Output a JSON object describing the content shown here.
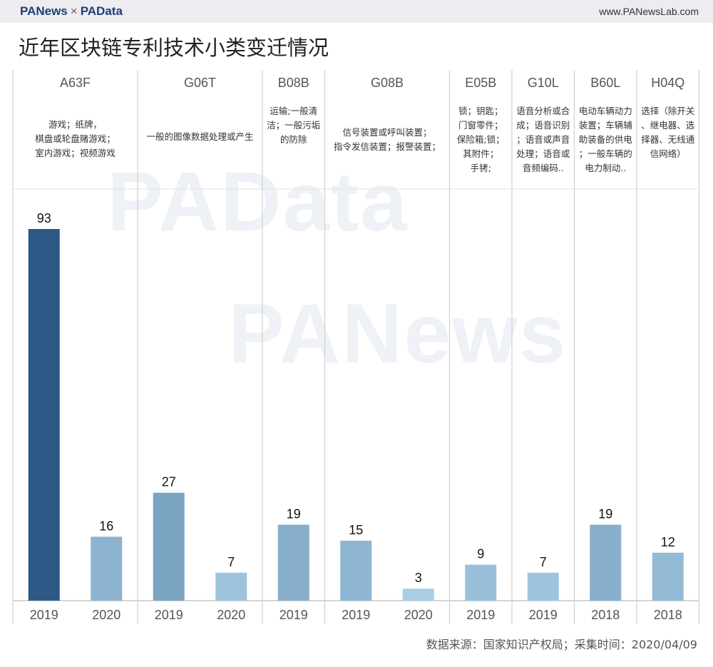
{
  "header": {
    "brand_left": "PANews",
    "brand_sep": "×",
    "brand_right": "PAData",
    "url": "www.PANewsLab.com"
  },
  "title": "近年区块链专利技术小类变迁情况",
  "watermarks": [
    "PAData",
    "PANews"
  ],
  "source": "数据来源：国家知识产权局；采集时间：2020/04/09",
  "colors": {
    "low": "#b4d8ee",
    "high": "#2c5985"
  },
  "chart_data": {
    "type": "bar",
    "groups": [
      {
        "code": "A63F",
        "desc": [
          "游戏；纸牌，",
          "棋盘或轮盘赌游戏；",
          "室内游戏；视频游戏"
        ],
        "bars": [
          {
            "year": "2019",
            "value": 93
          },
          {
            "year": "2020",
            "value": 16
          }
        ]
      },
      {
        "code": "G06T",
        "desc": [
          "一般的图像数据处理或产生"
        ],
        "bars": [
          {
            "year": "2019",
            "value": 27
          },
          {
            "year": "2020",
            "value": 7
          }
        ]
      },
      {
        "code": "B08B",
        "desc": [
          "运输;一般清",
          "洁；一般污垢",
          "的防除"
        ],
        "bars": [
          {
            "year": "2019",
            "value": 19
          }
        ]
      },
      {
        "code": "G08B",
        "desc": [
          "信号装置或呼叫装置；",
          "指令发信装置；报警装置；"
        ],
        "bars": [
          {
            "year": "2019",
            "value": 15
          },
          {
            "year": "2020",
            "value": 3
          }
        ]
      },
      {
        "code": "E05B",
        "desc": [
          "锁；钥匙；",
          "门窗零件；",
          "保险箱;锁；",
          "其附件；",
          "手铐;"
        ],
        "bars": [
          {
            "year": "2019",
            "value": 9
          }
        ]
      },
      {
        "code": "G10L",
        "desc": [
          "语音分析或合",
          "成；语音识别",
          "；语音或声音",
          "处理；语音或",
          "音频编码.."
        ],
        "bars": [
          {
            "year": "2019",
            "value": 7
          }
        ]
      },
      {
        "code": "B60L",
        "desc": [
          "电动车辆动力",
          "装置；车辆辅",
          "助装备的供电",
          "；一般车辆的",
          "电力制动.."
        ],
        "bars": [
          {
            "year": "2018",
            "value": 19
          }
        ]
      },
      {
        "code": "H04Q",
        "desc": [
          "选择（除开关",
          "、继电器、选",
          "择器、无线通",
          "信网络）"
        ],
        "bars": [
          {
            "year": "2018",
            "value": 12
          }
        ]
      }
    ],
    "ylim": [
      0,
      93
    ],
    "grid": false,
    "legend": "none"
  }
}
